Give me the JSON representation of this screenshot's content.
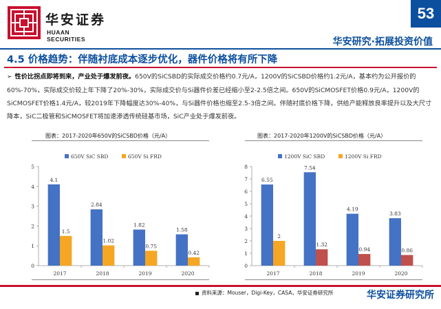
{
  "header": {
    "logo_cn": "华安证券",
    "logo_en": "HUAAN SECURITIES",
    "page_number": "53",
    "tagline": "华安研究·拓展投资价值"
  },
  "section": {
    "title": "4.5 价格趋势：伴随衬底成本逐步优化，器件价格将有所下降"
  },
  "body": {
    "lead": "性价比拐点即将到来，产业处于爆发前夜。",
    "text": "650V的SiCSBD的实际成交价格约0.7元/A，1200V的SiCSBD价格约1.2元/A，基本约为公开报价的60%-70%，实际成交价较上年下降了20%-30%，实际成交价与Si器件价差已经缩小至2-2.5倍之间。650V的SiCMOSFET价格0.9元/A，1200V的SiCMOSFET价格1.4元/A，较2019年下降幅度达30%-40%，与Si器件价格也缩至2.5-3倍之间。伴随衬底价格下降，供给产能释放良率提升以及大尺寸降本，SiC二极管和SiCMOSFET将加速渗透传统硅基市场，SiC产业处于爆发前夜。"
  },
  "chart_data": [
    {
      "type": "bar",
      "title": "图表：2017-2020年650V的SiCSBD价格（元/A）",
      "categories": [
        "2017",
        "2018",
        "2019",
        "2020"
      ],
      "series": [
        {
          "name": "650V SiC SBD",
          "values": [
            4.1,
            2.84,
            1.82,
            1.58
          ],
          "labels": [
            "4.1",
            "2.84",
            "1.82",
            "1.58"
          ],
          "color": "#4472c4"
        },
        {
          "name": "650V Si FRD",
          "values": [
            1.5,
            1.02,
            0.75,
            0.42
          ],
          "labels": [
            "1.5",
            "1.02",
            "0.75",
            "0.42"
          ],
          "color": "#f5a623"
        }
      ],
      "ylim": [
        0,
        5
      ],
      "yticks": [
        "0",
        "1",
        "2",
        "3",
        "4",
        "5"
      ],
      "legend": "top"
    },
    {
      "type": "bar",
      "title": "图表：2017-2020年1200V的SiCSBD价格（元/A）",
      "categories": [
        "2017",
        "2018",
        "2019",
        "2020"
      ],
      "series": [
        {
          "name": "1200V SiC SBD",
          "values": [
            6.55,
            7.54,
            4.19,
            3.83
          ],
          "labels": [
            "6.55",
            "7.54",
            "4.19",
            "3.83"
          ],
          "color": "#4472c4"
        },
        {
          "name": "1200V Si FRD",
          "values": [
            2,
            1.32,
            0.94,
            0.86
          ],
          "labels": [
            "2",
            "1.32",
            "0.94",
            "0.86"
          ],
          "color": "#f5a623",
          "point_colors": [
            "#f5a623",
            "#c0504d",
            "#c0504d",
            "#c0504d"
          ]
        }
      ],
      "ylim": [
        0,
        8
      ],
      "yticks": [
        "0",
        "1",
        "2",
        "3",
        "4",
        "5",
        "6",
        "7",
        "8"
      ],
      "legend": "top"
    }
  ],
  "footer": {
    "source": "资料来源：Mouser，Digi-Key，CASA，华安证券研究所",
    "brand": "华安证券研究所"
  },
  "colors": {
    "brand_blue": "#0c4f9e",
    "accent_red": "#c8102e"
  }
}
